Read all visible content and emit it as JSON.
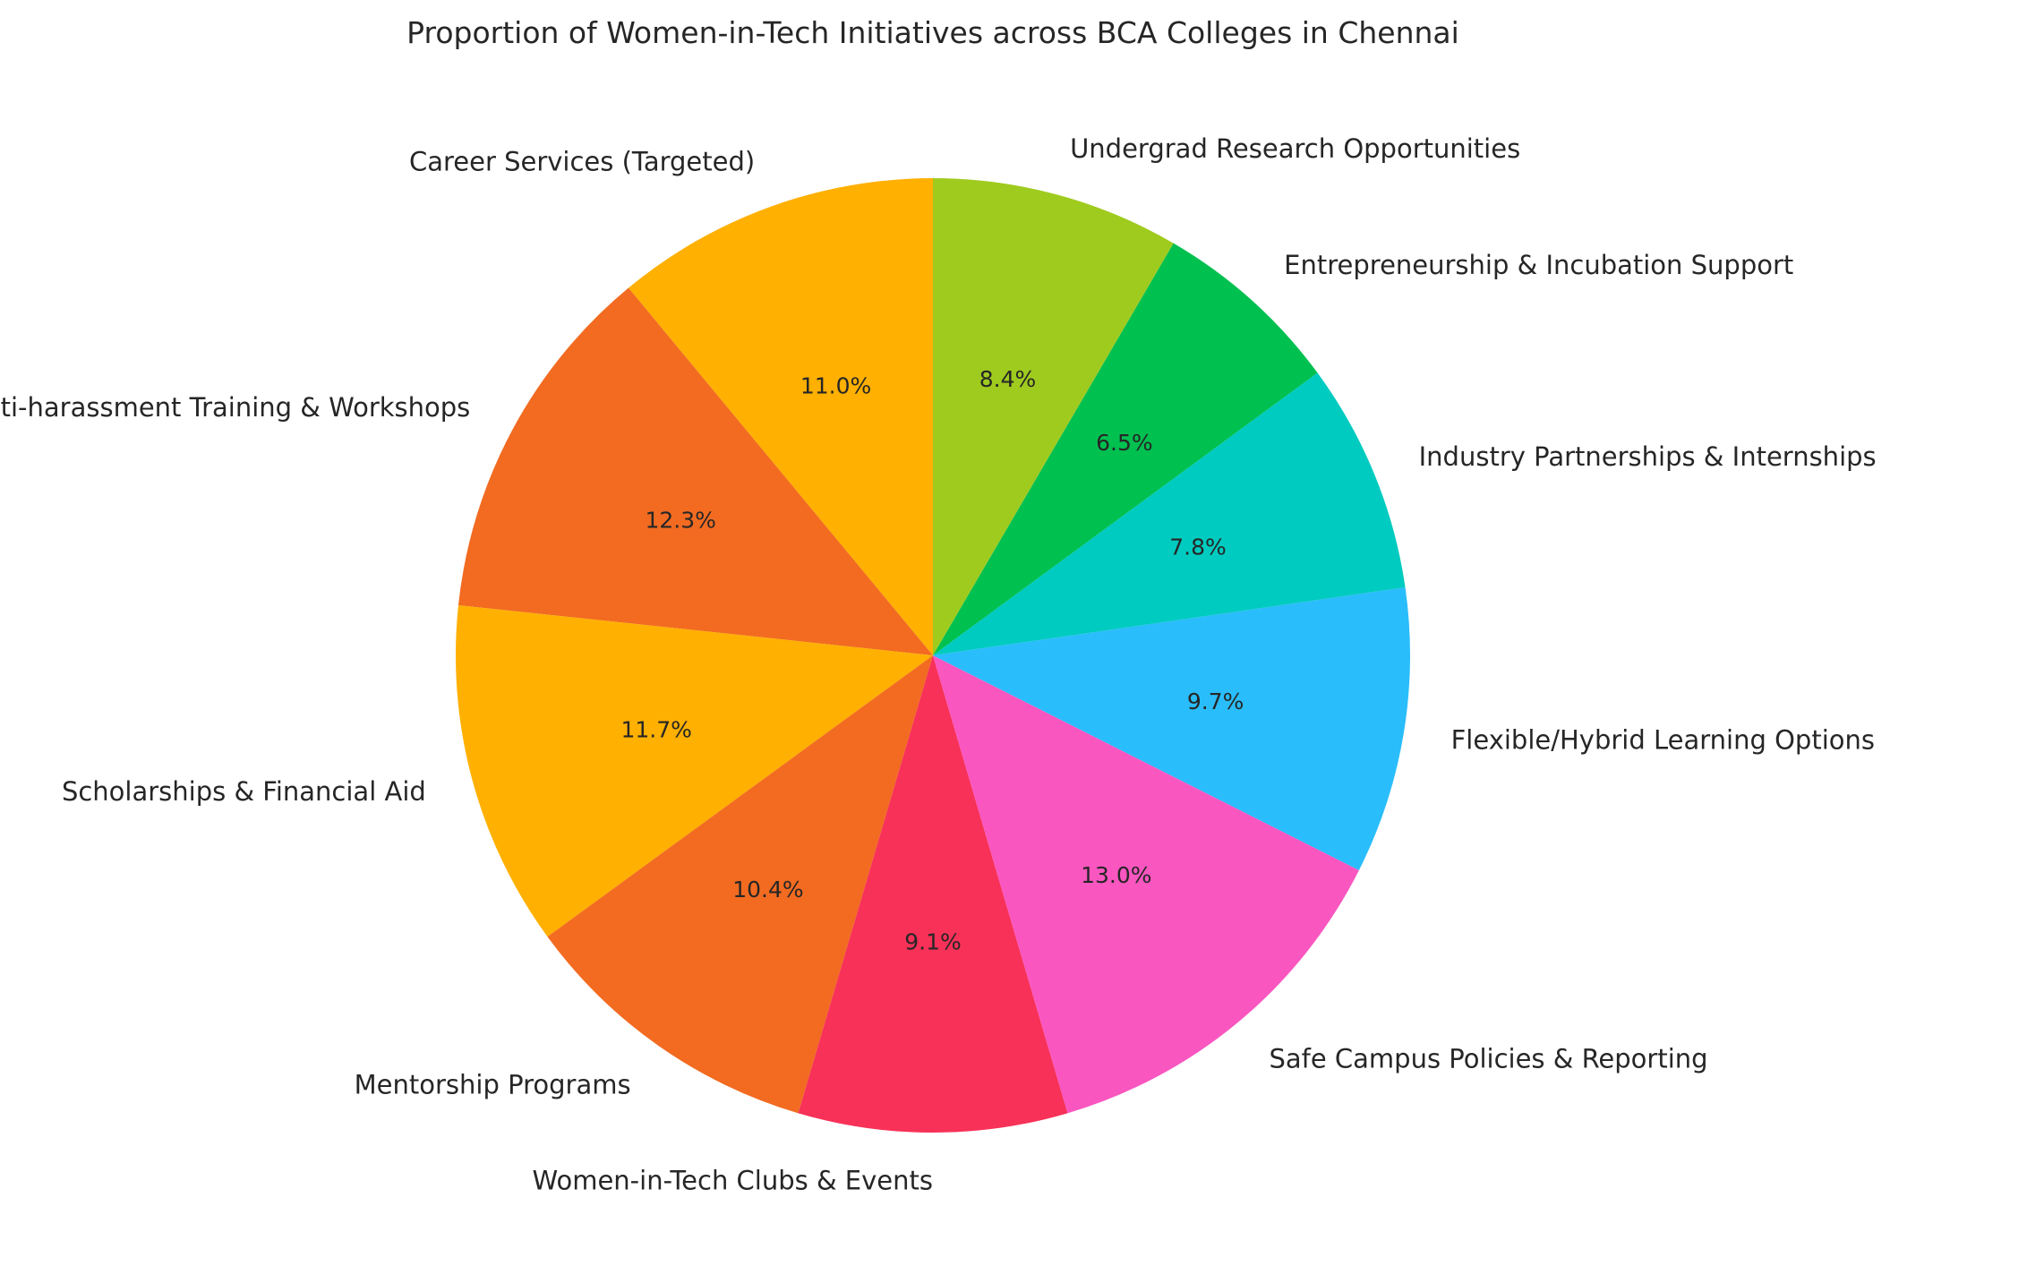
{
  "chart_data": {
    "type": "pie",
    "title": "Proportion of Women-in-Tech Initiatives across BCA Colleges in Chennai",
    "start_angle_deg": 90,
    "direction": "counterclockwise",
    "slices": [
      {
        "label": "Career Services (Targeted)",
        "value": 11.0,
        "pct_text": "11.0%",
        "color": "#FFB000"
      },
      {
        "label": "Anti-harassment Training & Workshops",
        "value": 12.3,
        "pct_text": "12.3%",
        "color": "#F26B21"
      },
      {
        "label": "Scholarships & Financial Aid",
        "value": 11.7,
        "pct_text": "11.7%",
        "color": "#FFB000"
      },
      {
        "label": "Mentorship Programs",
        "value": 10.4,
        "pct_text": "10.4%",
        "color": "#F26B21"
      },
      {
        "label": "Women-in-Tech Clubs & Events",
        "value": 9.1,
        "pct_text": "9.1%",
        "color": "#F73158"
      },
      {
        "label": "Safe Campus Policies & Reporting",
        "value": 13.0,
        "pct_text": "13.0%",
        "color": "#F956C0"
      },
      {
        "label": "Flexible/Hybrid Learning Options",
        "value": 9.7,
        "pct_text": "9.7%",
        "color": "#2ABDFB"
      },
      {
        "label": "Industry Partnerships & Internships",
        "value": 7.8,
        "pct_text": "7.8%",
        "color": "#00CBC0"
      },
      {
        "label": "Entrepreneurship & Incubation Support",
        "value": 6.5,
        "pct_text": "6.5%",
        "color": "#00C050"
      },
      {
        "label": "Undergrad Research Opportunities",
        "value": 8.4,
        "pct_text": "8.4%",
        "color": "#9FCB1F"
      }
    ]
  }
}
